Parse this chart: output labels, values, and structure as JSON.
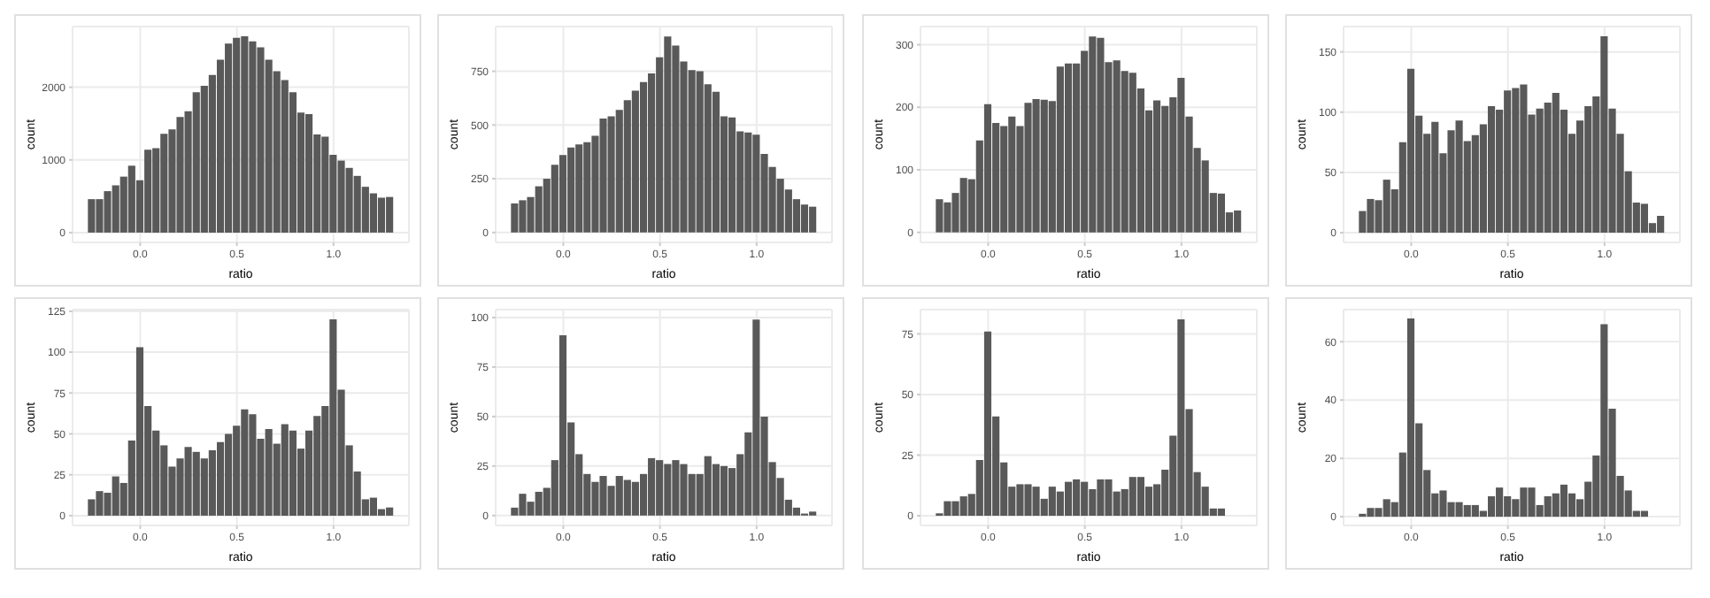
{
  "chart_data": [
    {
      "type": "histogram",
      "xlabel": "ratio",
      "ylabel": "count",
      "color": "#595959",
      "grid": true,
      "xlim": [
        -0.35,
        1.39
      ],
      "xticks": [
        {
          "value": 0,
          "label": "0.0"
        },
        {
          "value": 0.5,
          "label": "0.5"
        },
        {
          "value": 1,
          "label": "1.0"
        }
      ],
      "ylim": [
        -135,
        2835
      ],
      "yticks": [
        0,
        1000,
        2000
      ],
      "bins": [
        -0.271,
        -0.229,
        -0.188,
        -0.146,
        -0.104,
        -0.063,
        -0.021,
        0.021,
        0.063,
        0.104,
        0.146,
        0.188,
        0.229,
        0.271,
        0.313,
        0.354,
        0.396,
        0.438,
        0.479,
        0.521,
        0.563,
        0.604,
        0.646,
        0.688,
        0.729,
        0.771,
        0.813,
        0.854,
        0.896,
        0.938,
        0.979,
        1.021,
        1.063,
        1.104,
        1.146,
        1.188,
        1.229,
        1.271,
        1.313
      ],
      "values": [
        460,
        460,
        570,
        650,
        770,
        920,
        720,
        1140,
        1160,
        1360,
        1420,
        1590,
        1670,
        1930,
        2020,
        2170,
        2380,
        2600,
        2680,
        2700,
        2630,
        2550,
        2380,
        2220,
        2100,
        1930,
        1650,
        1630,
        1350,
        1320,
        1070,
        990,
        890,
        780,
        630,
        540,
        480,
        490
      ]
    },
    {
      "type": "histogram",
      "xlabel": "ratio",
      "ylabel": "count",
      "color": "#595959",
      "grid": true,
      "xlim": [
        -0.35,
        1.39
      ],
      "xticks": [
        {
          "value": 0,
          "label": "0.0"
        },
        {
          "value": 0.5,
          "label": "0.5"
        },
        {
          "value": 1,
          "label": "1.0"
        }
      ],
      "ylim": [
        -46,
        958
      ],
      "yticks": [
        0,
        250,
        500,
        750
      ],
      "bins": [
        -0.271,
        -0.229,
        -0.188,
        -0.146,
        -0.104,
        -0.063,
        -0.021,
        0.021,
        0.063,
        0.104,
        0.146,
        0.188,
        0.229,
        0.271,
        0.313,
        0.354,
        0.396,
        0.438,
        0.479,
        0.521,
        0.563,
        0.604,
        0.646,
        0.688,
        0.729,
        0.771,
        0.813,
        0.854,
        0.896,
        0.938,
        0.979,
        1.021,
        1.063,
        1.104,
        1.146,
        1.188,
        1.229,
        1.271,
        1.313
      ],
      "values": [
        135,
        150,
        165,
        215,
        250,
        315,
        360,
        395,
        410,
        420,
        450,
        530,
        540,
        570,
        615,
        660,
        700,
        740,
        815,
        912,
        870,
        795,
        755,
        750,
        690,
        655,
        540,
        535,
        470,
        465,
        455,
        365,
        305,
        250,
        200,
        155,
        130,
        120
      ]
    },
    {
      "type": "histogram",
      "xlabel": "ratio",
      "ylabel": "count",
      "color": "#595959",
      "grid": true,
      "xlim": [
        -0.35,
        1.39
      ],
      "xticks": [
        {
          "value": 0,
          "label": "0.0"
        },
        {
          "value": 0.5,
          "label": "0.5"
        },
        {
          "value": 1,
          "label": "1.0"
        }
      ],
      "ylim": [
        -16,
        329
      ],
      "yticks": [
        0,
        100,
        200,
        300
      ],
      "bins": [
        -0.271,
        -0.229,
        -0.188,
        -0.146,
        -0.104,
        -0.063,
        -0.021,
        0.021,
        0.063,
        0.104,
        0.146,
        0.188,
        0.229,
        0.271,
        0.313,
        0.354,
        0.396,
        0.438,
        0.479,
        0.521,
        0.563,
        0.604,
        0.646,
        0.688,
        0.729,
        0.771,
        0.813,
        0.854,
        0.896,
        0.938,
        0.979,
        1.021,
        1.063,
        1.104,
        1.146,
        1.188,
        1.229,
        1.271,
        1.313
      ],
      "values": [
        53,
        48,
        63,
        87,
        85,
        147,
        205,
        175,
        170,
        185,
        170,
        207,
        213,
        212,
        210,
        265,
        270,
        270,
        290,
        313,
        311,
        272,
        275,
        258,
        255,
        230,
        195,
        211,
        202,
        216,
        247,
        185,
        135,
        115,
        63,
        62,
        32,
        35
      ]
    },
    {
      "type": "histogram",
      "xlabel": "ratio",
      "ylabel": "count",
      "color": "#595959",
      "grid": true,
      "xlim": [
        -0.35,
        1.39
      ],
      "xticks": [
        {
          "value": 0,
          "label": "0.0"
        },
        {
          "value": 0.5,
          "label": "0.5"
        },
        {
          "value": 1,
          "label": "1.0"
        }
      ],
      "ylim": [
        -8,
        171
      ],
      "yticks": [
        0,
        50,
        100,
        150
      ],
      "bins": [
        -0.271,
        -0.229,
        -0.188,
        -0.146,
        -0.104,
        -0.063,
        -0.021,
        0.021,
        0.063,
        0.104,
        0.146,
        0.188,
        0.229,
        0.271,
        0.313,
        0.354,
        0.396,
        0.438,
        0.479,
        0.521,
        0.563,
        0.604,
        0.646,
        0.688,
        0.729,
        0.771,
        0.813,
        0.854,
        0.896,
        0.938,
        0.979,
        1.021,
        1.063,
        1.104,
        1.146,
        1.188,
        1.229,
        1.271,
        1.313
      ],
      "values": [
        18,
        28,
        27,
        44,
        36,
        75,
        136,
        97,
        82,
        92,
        66,
        85,
        93,
        76,
        81,
        90,
        105,
        102,
        118,
        120,
        123,
        98,
        103,
        108,
        116,
        102,
        82,
        93,
        105,
        113,
        163,
        103,
        82,
        51,
        25,
        24,
        8,
        14
      ]
    },
    {
      "type": "histogram",
      "xlabel": "ratio",
      "ylabel": "count",
      "color": "#595959",
      "grid": true,
      "xlim": [
        -0.35,
        1.39
      ],
      "xticks": [
        {
          "value": 0,
          "label": "0.0"
        },
        {
          "value": 0.5,
          "label": "0.5"
        },
        {
          "value": 1,
          "label": "1.0"
        }
      ],
      "ylim": [
        -6,
        126
      ],
      "yticks": [
        0,
        25,
        50,
        75,
        100,
        125
      ],
      "bins": [
        -0.271,
        -0.229,
        -0.188,
        -0.146,
        -0.104,
        -0.063,
        -0.021,
        0.021,
        0.063,
        0.104,
        0.146,
        0.188,
        0.229,
        0.271,
        0.313,
        0.354,
        0.396,
        0.438,
        0.479,
        0.521,
        0.563,
        0.604,
        0.646,
        0.688,
        0.729,
        0.771,
        0.813,
        0.854,
        0.896,
        0.938,
        0.979,
        1.021,
        1.063,
        1.104,
        1.146,
        1.188,
        1.229,
        1.271,
        1.313
      ],
      "values": [
        10,
        15,
        14,
        24,
        20,
        46,
        103,
        67,
        52,
        43,
        30,
        35,
        42,
        39,
        35,
        40,
        45,
        50,
        55,
        65,
        62,
        47,
        53,
        44,
        56,
        52,
        41,
        52,
        61,
        67,
        120,
        77,
        43,
        27,
        10,
        11,
        4,
        5
      ]
    },
    {
      "type": "histogram",
      "xlabel": "ratio",
      "ylabel": "count",
      "color": "#595959",
      "grid": true,
      "xlim": [
        -0.35,
        1.39
      ],
      "xticks": [
        {
          "value": 0,
          "label": "0.0"
        },
        {
          "value": 0.5,
          "label": "0.5"
        },
        {
          "value": 1,
          "label": "1.0"
        }
      ],
      "ylim": [
        -5,
        104
      ],
      "yticks": [
        0,
        25,
        50,
        75,
        100
      ],
      "bins": [
        -0.271,
        -0.229,
        -0.188,
        -0.146,
        -0.104,
        -0.063,
        -0.021,
        0.021,
        0.063,
        0.104,
        0.146,
        0.188,
        0.229,
        0.271,
        0.313,
        0.354,
        0.396,
        0.438,
        0.479,
        0.521,
        0.563,
        0.604,
        0.646,
        0.688,
        0.729,
        0.771,
        0.813,
        0.854,
        0.896,
        0.938,
        0.979,
        1.021,
        1.063,
        1.104,
        1.146,
        1.188,
        1.229,
        1.271,
        1.313
      ],
      "values": [
        4,
        11,
        7,
        12,
        14,
        28,
        91,
        47,
        31,
        21,
        17,
        20,
        15,
        20,
        18,
        17,
        21,
        29,
        28,
        26,
        28,
        26,
        21,
        21,
        30,
        26,
        25,
        24,
        31,
        42,
        99,
        50,
        27,
        19,
        8,
        4,
        1,
        2
      ]
    },
    {
      "type": "histogram",
      "xlabel": "ratio",
      "ylabel": "count",
      "color": "#595959",
      "grid": true,
      "xlim": [
        -0.35,
        1.39
      ],
      "xticks": [
        {
          "value": 0,
          "label": "0.0"
        },
        {
          "value": 0.5,
          "label": "0.5"
        },
        {
          "value": 1,
          "label": "1.0"
        }
      ],
      "ylim": [
        -4,
        85
      ],
      "yticks": [
        0,
        25,
        50,
        75
      ],
      "bins": [
        -0.271,
        -0.229,
        -0.188,
        -0.146,
        -0.104,
        -0.063,
        -0.021,
        0.021,
        0.063,
        0.104,
        0.146,
        0.188,
        0.229,
        0.271,
        0.313,
        0.354,
        0.396,
        0.438,
        0.479,
        0.521,
        0.563,
        0.604,
        0.646,
        0.688,
        0.729,
        0.771,
        0.813,
        0.854,
        0.896,
        0.938,
        0.979,
        1.021,
        1.063,
        1.104,
        1.146,
        1.188,
        1.229,
        1.271,
        1.313
      ],
      "values": [
        1,
        6,
        6,
        8,
        9,
        23,
        76,
        41,
        22,
        12,
        13,
        13,
        12,
        7,
        12,
        10,
        14,
        15,
        14,
        11,
        15,
        15,
        10,
        11,
        16,
        16,
        12,
        13,
        19,
        33,
        81,
        44,
        18,
        12,
        3,
        3,
        0,
        0
      ]
    },
    {
      "type": "histogram",
      "xlabel": "ratio",
      "ylabel": "count",
      "color": "#595959",
      "grid": true,
      "xlim": [
        -0.35,
        1.39
      ],
      "xticks": [
        {
          "value": 0,
          "label": "0.0"
        },
        {
          "value": 0.5,
          "label": "0.5"
        },
        {
          "value": 1,
          "label": "1.0"
        }
      ],
      "ylim": [
        -3,
        71
      ],
      "yticks": [
        0,
        20,
        40,
        60
      ],
      "bins": [
        -0.271,
        -0.229,
        -0.188,
        -0.146,
        -0.104,
        -0.063,
        -0.021,
        0.021,
        0.063,
        0.104,
        0.146,
        0.188,
        0.229,
        0.271,
        0.313,
        0.354,
        0.396,
        0.438,
        0.479,
        0.521,
        0.563,
        0.604,
        0.646,
        0.688,
        0.729,
        0.771,
        0.813,
        0.854,
        0.896,
        0.938,
        0.979,
        1.021,
        1.063,
        1.104,
        1.146,
        1.188,
        1.229,
        1.271,
        1.313
      ],
      "values": [
        1,
        3,
        3,
        6,
        5,
        22,
        68,
        32,
        16,
        8,
        9,
        5,
        5,
        4,
        4,
        2,
        7,
        10,
        7,
        6,
        10,
        10,
        4,
        7,
        8,
        11,
        8,
        6,
        12,
        21,
        66,
        37,
        14,
        9,
        2,
        2,
        0,
        0
      ]
    }
  ]
}
